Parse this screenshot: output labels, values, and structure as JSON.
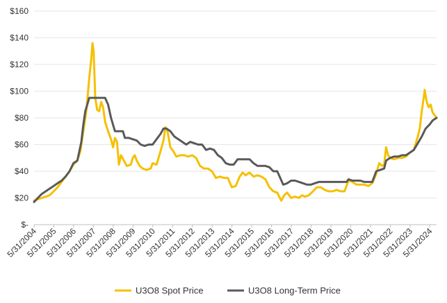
{
  "chart_data": {
    "type": "line",
    "title": "",
    "xlabel": "",
    "ylabel": "",
    "ylim": [
      0,
      160
    ],
    "xlim": [
      2004.41,
      2024.75
    ],
    "y_ticks": [
      {
        "value": 0,
        "label": "$-"
      },
      {
        "value": 20,
        "label": "$20"
      },
      {
        "value": 40,
        "label": "$40"
      },
      {
        "value": 60,
        "label": "$60"
      },
      {
        "value": 80,
        "label": "$80"
      },
      {
        "value": 100,
        "label": "$100"
      },
      {
        "value": 120,
        "label": "$120"
      },
      {
        "value": 140,
        "label": "$140"
      },
      {
        "value": 160,
        "label": "$160"
      }
    ],
    "x_ticks": [
      {
        "value": 2004.41,
        "label": "5/31/2004"
      },
      {
        "value": 2005.41,
        "label": "5/31/2005"
      },
      {
        "value": 2006.41,
        "label": "5/31/2006"
      },
      {
        "value": 2007.41,
        "label": "5/31/2007"
      },
      {
        "value": 2008.41,
        "label": "5/31/2008"
      },
      {
        "value": 2009.41,
        "label": "5/31/2009"
      },
      {
        "value": 2010.41,
        "label": "5/31/2010"
      },
      {
        "value": 2011.41,
        "label": "5/31/2011"
      },
      {
        "value": 2012.41,
        "label": "5/31/2012"
      },
      {
        "value": 2013.41,
        "label": "5/31/2013"
      },
      {
        "value": 2014.41,
        "label": "5/31/2014"
      },
      {
        "value": 2015.41,
        "label": "5/31/2015"
      },
      {
        "value": 2016.41,
        "label": "5/31/2016"
      },
      {
        "value": 2017.41,
        "label": "5/31/2017"
      },
      {
        "value": 2018.41,
        "label": "5/31/2018"
      },
      {
        "value": 2019.41,
        "label": "5/31/2019"
      },
      {
        "value": 2020.41,
        "label": "5/31/2020"
      },
      {
        "value": 2021.41,
        "label": "5/31/2021"
      },
      {
        "value": 2022.41,
        "label": "5/31/2022"
      },
      {
        "value": 2023.41,
        "label": "5/31/2023"
      },
      {
        "value": 2024.41,
        "label": "5/31/2024"
      }
    ],
    "grid": true,
    "legend": "bottom",
    "series": [
      {
        "name": "U3O8 Spot Price",
        "color": "#F5C000",
        "points": [
          [
            2004.41,
            18
          ],
          [
            2004.6,
            19
          ],
          [
            2004.8,
            20
          ],
          [
            2005.0,
            21
          ],
          [
            2005.2,
            22
          ],
          [
            2005.4,
            25
          ],
          [
            2005.6,
            28
          ],
          [
            2005.8,
            32
          ],
          [
            2006.0,
            36
          ],
          [
            2006.2,
            40
          ],
          [
            2006.4,
            45
          ],
          [
            2006.6,
            48
          ],
          [
            2006.75,
            55
          ],
          [
            2006.9,
            70
          ],
          [
            2007.05,
            85
          ],
          [
            2007.2,
            110
          ],
          [
            2007.3,
            124
          ],
          [
            2007.36,
            136
          ],
          [
            2007.42,
            130
          ],
          [
            2007.5,
            95
          ],
          [
            2007.6,
            86
          ],
          [
            2007.7,
            85
          ],
          [
            2007.8,
            92
          ],
          [
            2007.9,
            88
          ],
          [
            2008.0,
            77
          ],
          [
            2008.15,
            70
          ],
          [
            2008.3,
            64
          ],
          [
            2008.4,
            58
          ],
          [
            2008.5,
            65
          ],
          [
            2008.6,
            62
          ],
          [
            2008.7,
            45
          ],
          [
            2008.8,
            52
          ],
          [
            2008.95,
            48
          ],
          [
            2009.1,
            44
          ],
          [
            2009.3,
            45
          ],
          [
            2009.4,
            50
          ],
          [
            2009.5,
            52
          ],
          [
            2009.6,
            48
          ],
          [
            2009.75,
            44
          ],
          [
            2009.9,
            42
          ],
          [
            2010.1,
            41
          ],
          [
            2010.3,
            42
          ],
          [
            2010.4,
            46
          ],
          [
            2010.6,
            45
          ],
          [
            2010.8,
            55
          ],
          [
            2010.95,
            63
          ],
          [
            2011.05,
            73
          ],
          [
            2011.15,
            70
          ],
          [
            2011.3,
            58
          ],
          [
            2011.45,
            55
          ],
          [
            2011.6,
            51
          ],
          [
            2011.8,
            52
          ],
          [
            2012.0,
            52
          ],
          [
            2012.2,
            51
          ],
          [
            2012.4,
            52
          ],
          [
            2012.6,
            50
          ],
          [
            2012.8,
            44
          ],
          [
            2013.0,
            42
          ],
          [
            2013.2,
            42
          ],
          [
            2013.4,
            40
          ],
          [
            2013.6,
            35
          ],
          [
            2013.8,
            36
          ],
          [
            2014.0,
            35
          ],
          [
            2014.2,
            35
          ],
          [
            2014.4,
            28
          ],
          [
            2014.6,
            29
          ],
          [
            2014.8,
            36
          ],
          [
            2014.95,
            39
          ],
          [
            2015.1,
            37
          ],
          [
            2015.3,
            39
          ],
          [
            2015.5,
            36
          ],
          [
            2015.7,
            37
          ],
          [
            2015.9,
            36
          ],
          [
            2016.1,
            34
          ],
          [
            2016.3,
            28
          ],
          [
            2016.5,
            25
          ],
          [
            2016.7,
            24
          ],
          [
            2016.9,
            18
          ],
          [
            2017.05,
            22
          ],
          [
            2017.2,
            24
          ],
          [
            2017.4,
            20
          ],
          [
            2017.6,
            21
          ],
          [
            2017.8,
            20
          ],
          [
            2017.95,
            22
          ],
          [
            2018.1,
            21
          ],
          [
            2018.3,
            22
          ],
          [
            2018.5,
            25
          ],
          [
            2018.7,
            28
          ],
          [
            2018.9,
            28
          ],
          [
            2019.1,
            26
          ],
          [
            2019.3,
            25
          ],
          [
            2019.5,
            25
          ],
          [
            2019.7,
            26
          ],
          [
            2019.9,
            25
          ],
          [
            2020.1,
            25
          ],
          [
            2020.3,
            33
          ],
          [
            2020.5,
            32
          ],
          [
            2020.7,
            30
          ],
          [
            2020.9,
            30
          ],
          [
            2021.1,
            30
          ],
          [
            2021.3,
            29
          ],
          [
            2021.5,
            31
          ],
          [
            2021.7,
            38
          ],
          [
            2021.85,
            46
          ],
          [
            2022.0,
            44
          ],
          [
            2022.1,
            45
          ],
          [
            2022.2,
            58
          ],
          [
            2022.3,
            52
          ],
          [
            2022.4,
            50
          ],
          [
            2022.6,
            49
          ],
          [
            2022.8,
            50
          ],
          [
            2023.0,
            50
          ],
          [
            2023.2,
            51
          ],
          [
            2023.4,
            54
          ],
          [
            2023.6,
            56
          ],
          [
            2023.8,
            66
          ],
          [
            2023.9,
            72
          ],
          [
            2024.0,
            85
          ],
          [
            2024.1,
            95
          ],
          [
            2024.15,
            101
          ],
          [
            2024.25,
            92
          ],
          [
            2024.35,
            88
          ],
          [
            2024.45,
            90
          ],
          [
            2024.55,
            84
          ],
          [
            2024.65,
            82
          ],
          [
            2024.75,
            80
          ]
        ]
      },
      {
        "name": "U3O8 Long-Term Price",
        "color": "#595959",
        "points": [
          [
            2004.41,
            17
          ],
          [
            2004.6,
            20
          ],
          [
            2004.8,
            23
          ],
          [
            2005.0,
            25
          ],
          [
            2005.2,
            27
          ],
          [
            2005.4,
            29
          ],
          [
            2005.6,
            31
          ],
          [
            2005.8,
            33
          ],
          [
            2006.0,
            36
          ],
          [
            2006.2,
            40
          ],
          [
            2006.4,
            46
          ],
          [
            2006.6,
            48
          ],
          [
            2006.8,
            62
          ],
          [
            2006.9,
            75
          ],
          [
            2007.0,
            85
          ],
          [
            2007.2,
            95
          ],
          [
            2007.4,
            95
          ],
          [
            2007.6,
            95
          ],
          [
            2007.8,
            95
          ],
          [
            2008.0,
            95
          ],
          [
            2008.15,
            90
          ],
          [
            2008.3,
            80
          ],
          [
            2008.5,
            70
          ],
          [
            2008.7,
            70
          ],
          [
            2008.9,
            70
          ],
          [
            2009.0,
            65
          ],
          [
            2009.2,
            65
          ],
          [
            2009.4,
            64
          ],
          [
            2009.6,
            63
          ],
          [
            2009.8,
            60
          ],
          [
            2010.0,
            59
          ],
          [
            2010.2,
            60
          ],
          [
            2010.4,
            60
          ],
          [
            2010.6,
            64
          ],
          [
            2010.8,
            68
          ],
          [
            2010.95,
            72
          ],
          [
            2011.1,
            72
          ],
          [
            2011.3,
            70
          ],
          [
            2011.5,
            66
          ],
          [
            2011.7,
            64
          ],
          [
            2011.9,
            62
          ],
          [
            2012.1,
            60
          ],
          [
            2012.3,
            62
          ],
          [
            2012.5,
            61
          ],
          [
            2012.7,
            60
          ],
          [
            2012.9,
            60
          ],
          [
            2013.1,
            56
          ],
          [
            2013.3,
            57
          ],
          [
            2013.5,
            56
          ],
          [
            2013.7,
            52
          ],
          [
            2013.9,
            50
          ],
          [
            2014.1,
            46
          ],
          [
            2014.3,
            45
          ],
          [
            2014.5,
            45
          ],
          [
            2014.7,
            49
          ],
          [
            2014.9,
            49
          ],
          [
            2015.1,
            49
          ],
          [
            2015.3,
            49
          ],
          [
            2015.5,
            46
          ],
          [
            2015.7,
            44
          ],
          [
            2015.9,
            44
          ],
          [
            2016.1,
            44
          ],
          [
            2016.3,
            43
          ],
          [
            2016.5,
            40
          ],
          [
            2016.7,
            40
          ],
          [
            2016.85,
            35
          ],
          [
            2017.0,
            30
          ],
          [
            2017.2,
            31
          ],
          [
            2017.4,
            33
          ],
          [
            2017.6,
            33
          ],
          [
            2017.8,
            32
          ],
          [
            2018.0,
            31
          ],
          [
            2018.2,
            30
          ],
          [
            2018.4,
            30
          ],
          [
            2018.6,
            31
          ],
          [
            2018.8,
            32
          ],
          [
            2019.0,
            32
          ],
          [
            2019.2,
            32
          ],
          [
            2019.4,
            32
          ],
          [
            2019.6,
            32
          ],
          [
            2019.8,
            32
          ],
          [
            2020.0,
            32
          ],
          [
            2020.2,
            32
          ],
          [
            2020.3,
            34
          ],
          [
            2020.5,
            33
          ],
          [
            2020.7,
            33
          ],
          [
            2020.9,
            33
          ],
          [
            2021.1,
            32
          ],
          [
            2021.3,
            32
          ],
          [
            2021.5,
            32
          ],
          [
            2021.7,
            40
          ],
          [
            2021.9,
            41
          ],
          [
            2022.1,
            42
          ],
          [
            2022.2,
            48
          ],
          [
            2022.4,
            50
          ],
          [
            2022.6,
            51
          ],
          [
            2022.8,
            51
          ],
          [
            2023.0,
            52
          ],
          [
            2023.2,
            52
          ],
          [
            2023.4,
            54
          ],
          [
            2023.6,
            56
          ],
          [
            2023.8,
            61
          ],
          [
            2024.0,
            66
          ],
          [
            2024.2,
            72
          ],
          [
            2024.4,
            75
          ],
          [
            2024.55,
            78
          ],
          [
            2024.75,
            80
          ]
        ]
      }
    ]
  }
}
